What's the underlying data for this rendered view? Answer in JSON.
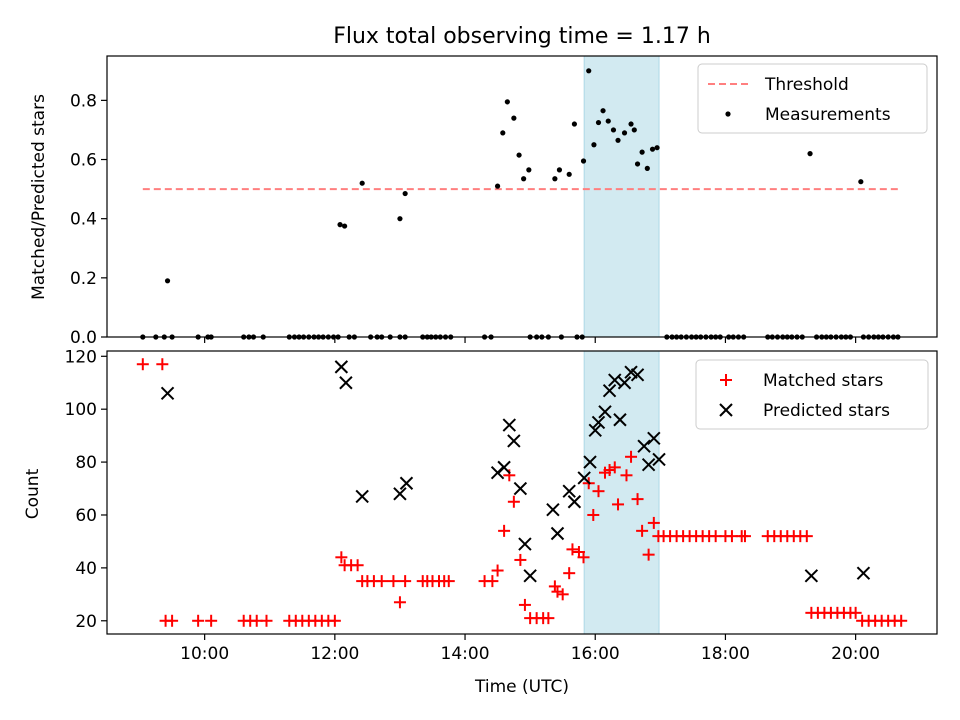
{
  "chart_data": [
    {
      "type": "scatter",
      "title": "Flux total observing time = 1.17 h",
      "xlabel": "",
      "ylabel": "Matched/Predicted stars",
      "ylim": [
        0,
        0.95
      ],
      "yticks": [
        "0.0",
        "0.2",
        "0.4",
        "0.6",
        "0.8"
      ],
      "xticks": [
        "",
        "",
        "",
        "",
        "",
        ""
      ],
      "highlight_span": [
        15.83,
        16.98
      ],
      "highlight_color": "#add8e6",
      "legend_position": "top-right",
      "threshold": {
        "name": "Threshold",
        "value": 0.5,
        "x_range": [
          9.05,
          20.7
        ],
        "color": "#ff7f7f"
      },
      "series": [
        {
          "name": "Measurements",
          "color": "#000000",
          "points": [
            [
              9.05,
              0
            ],
            [
              9.25,
              0
            ],
            [
              9.38,
              0
            ],
            [
              9.5,
              0
            ],
            [
              9.43,
              0.19
            ],
            [
              9.9,
              0
            ],
            [
              10.05,
              0
            ],
            [
              10.1,
              0
            ],
            [
              10.6,
              0
            ],
            [
              10.68,
              0
            ],
            [
              10.75,
              0
            ],
            [
              10.9,
              0
            ],
            [
              11.3,
              0
            ],
            [
              11.38,
              0
            ],
            [
              11.45,
              0
            ],
            [
              11.52,
              0
            ],
            [
              11.6,
              0
            ],
            [
              11.68,
              0
            ],
            [
              11.75,
              0
            ],
            [
              11.82,
              0
            ],
            [
              11.9,
              0
            ],
            [
              11.98,
              0
            ],
            [
              12.05,
              0
            ],
            [
              12.08,
              0.38
            ],
            [
              12.15,
              0.375
            ],
            [
              12.22,
              0
            ],
            [
              12.3,
              0
            ],
            [
              12.42,
              0.52
            ],
            [
              12.55,
              0
            ],
            [
              12.65,
              0
            ],
            [
              12.72,
              0
            ],
            [
              12.85,
              0
            ],
            [
              13.0,
              0.4
            ],
            [
              13.08,
              0.485
            ],
            [
              13.0,
              0
            ],
            [
              13.08,
              0
            ],
            [
              13.35,
              0
            ],
            [
              13.42,
              0
            ],
            [
              13.48,
              0
            ],
            [
              13.55,
              0
            ],
            [
              13.62,
              0
            ],
            [
              13.7,
              0
            ],
            [
              13.78,
              0
            ],
            [
              14.3,
              0
            ],
            [
              14.4,
              0
            ],
            [
              14.5,
              0.51
            ],
            [
              14.58,
              0.69
            ],
            [
              14.65,
              0.795
            ],
            [
              14.75,
              0.74
            ],
            [
              14.83,
              0.615
            ],
            [
              14.9,
              0.535
            ],
            [
              14.98,
              0.565
            ],
            [
              15.0,
              0
            ],
            [
              15.1,
              0
            ],
            [
              15.18,
              0
            ],
            [
              15.28,
              0
            ],
            [
              15.38,
              0.535
            ],
            [
              15.45,
              0.565
            ],
            [
              15.48,
              0
            ],
            [
              15.6,
              0.55
            ],
            [
              15.68,
              0.72
            ],
            [
              15.72,
              0
            ],
            [
              15.8,
              0
            ],
            [
              15.82,
              0.595
            ],
            [
              15.9,
              0.9
            ],
            [
              15.98,
              0.65
            ],
            [
              16.05,
              0.725
            ],
            [
              16.12,
              0.765
            ],
            [
              16.2,
              0.73
            ],
            [
              16.28,
              0.7
            ],
            [
              16.35,
              0.665
            ],
            [
              16.45,
              0.69
            ],
            [
              16.55,
              0.72
            ],
            [
              16.6,
              0.7
            ],
            [
              16.65,
              0.585
            ],
            [
              16.72,
              0.625
            ],
            [
              16.8,
              0.57
            ],
            [
              16.88,
              0.635
            ],
            [
              16.95,
              0.64
            ],
            [
              17.1,
              0
            ],
            [
              17.18,
              0
            ],
            [
              17.25,
              0
            ],
            [
              17.32,
              0
            ],
            [
              17.4,
              0
            ],
            [
              17.48,
              0
            ],
            [
              17.55,
              0
            ],
            [
              17.62,
              0
            ],
            [
              17.7,
              0
            ],
            [
              17.78,
              0
            ],
            [
              17.85,
              0
            ],
            [
              17.92,
              0
            ],
            [
              18.05,
              0
            ],
            [
              18.12,
              0
            ],
            [
              18.2,
              0
            ],
            [
              18.28,
              0
            ],
            [
              18.65,
              0
            ],
            [
              18.72,
              0
            ],
            [
              18.8,
              0
            ],
            [
              18.88,
              0
            ],
            [
              18.95,
              0
            ],
            [
              19.02,
              0
            ],
            [
              19.1,
              0
            ],
            [
              19.18,
              0
            ],
            [
              19.3,
              0.62
            ],
            [
              19.4,
              0
            ],
            [
              19.48,
              0
            ],
            [
              19.55,
              0
            ],
            [
              19.62,
              0
            ],
            [
              19.7,
              0
            ],
            [
              19.78,
              0
            ],
            [
              19.85,
              0
            ],
            [
              19.92,
              0
            ],
            [
              20.08,
              0.525
            ],
            [
              20.12,
              0
            ],
            [
              20.2,
              0
            ],
            [
              20.28,
              0
            ],
            [
              20.35,
              0
            ],
            [
              20.42,
              0
            ],
            [
              20.5,
              0
            ],
            [
              20.58,
              0
            ],
            [
              20.65,
              0
            ]
          ]
        }
      ]
    },
    {
      "type": "scatter",
      "title": "",
      "xlabel": "Time (UTC)",
      "ylabel": "Count",
      "ylim": [
        15,
        122
      ],
      "yticks": [
        "20",
        "40",
        "60",
        "80",
        "100",
        "120"
      ],
      "xticks": [
        "10:00",
        "12:00",
        "14:00",
        "16:00",
        "18:00",
        "20:00"
      ],
      "highlight_span": [
        15.83,
        16.98
      ],
      "highlight_color": "#add8e6",
      "legend_position": "top-right",
      "series": [
        {
          "name": "Matched stars",
          "color": "#ff0000",
          "marker": "plus",
          "points": [
            [
              9.05,
              117
            ],
            [
              9.35,
              117
            ],
            [
              9.4,
              20
            ],
            [
              9.5,
              20
            ],
            [
              9.9,
              20
            ],
            [
              10.1,
              20
            ],
            [
              10.6,
              20
            ],
            [
              10.7,
              20
            ],
            [
              10.8,
              20
            ],
            [
              10.95,
              20
            ],
            [
              11.3,
              20
            ],
            [
              11.4,
              20
            ],
            [
              11.5,
              20
            ],
            [
              11.6,
              20
            ],
            [
              11.7,
              20
            ],
            [
              11.8,
              20
            ],
            [
              11.9,
              20
            ],
            [
              12.0,
              20
            ],
            [
              12.1,
              44
            ],
            [
              12.15,
              41
            ],
            [
              12.25,
              41
            ],
            [
              12.35,
              41
            ],
            [
              12.42,
              35
            ],
            [
              12.5,
              35
            ],
            [
              12.6,
              35
            ],
            [
              12.72,
              35
            ],
            [
              12.9,
              35
            ],
            [
              13.0,
              27
            ],
            [
              13.08,
              35
            ],
            [
              13.35,
              35
            ],
            [
              13.42,
              35
            ],
            [
              13.5,
              35
            ],
            [
              13.6,
              35
            ],
            [
              13.68,
              35
            ],
            [
              13.75,
              35
            ],
            [
              14.3,
              35
            ],
            [
              14.42,
              35
            ],
            [
              14.5,
              39
            ],
            [
              14.6,
              54
            ],
            [
              14.68,
              75
            ],
            [
              14.75,
              65
            ],
            [
              14.85,
              43
            ],
            [
              14.92,
              26
            ],
            [
              15.0,
              21
            ],
            [
              15.1,
              21
            ],
            [
              15.2,
              21
            ],
            [
              15.28,
              21
            ],
            [
              15.38,
              33
            ],
            [
              15.42,
              31
            ],
            [
              15.5,
              30
            ],
            [
              15.6,
              38
            ],
            [
              15.65,
              47
            ],
            [
              15.75,
              46
            ],
            [
              15.82,
              44
            ],
            [
              15.9,
              72
            ],
            [
              15.97,
              60
            ],
            [
              16.05,
              69
            ],
            [
              16.15,
              76
            ],
            [
              16.22,
              77
            ],
            [
              16.3,
              78
            ],
            [
              16.35,
              64
            ],
            [
              16.48,
              75
            ],
            [
              16.55,
              82
            ],
            [
              16.65,
              66
            ],
            [
              16.72,
              54
            ],
            [
              16.82,
              45
            ],
            [
              16.9,
              57
            ],
            [
              16.97,
              52
            ],
            [
              17.05,
              52
            ],
            [
              17.15,
              52
            ],
            [
              17.25,
              52
            ],
            [
              17.35,
              52
            ],
            [
              17.45,
              52
            ],
            [
              17.55,
              52
            ],
            [
              17.65,
              52
            ],
            [
              17.75,
              52
            ],
            [
              17.85,
              52
            ],
            [
              18.0,
              52
            ],
            [
              18.1,
              52
            ],
            [
              18.25,
              52
            ],
            [
              18.3,
              52
            ],
            [
              18.65,
              52
            ],
            [
              18.75,
              52
            ],
            [
              18.85,
              52
            ],
            [
              18.95,
              52
            ],
            [
              19.05,
              52
            ],
            [
              19.15,
              52
            ],
            [
              19.25,
              52
            ],
            [
              19.32,
              23
            ],
            [
              19.42,
              23
            ],
            [
              19.52,
              23
            ],
            [
              19.62,
              23
            ],
            [
              19.72,
              23
            ],
            [
              19.82,
              23
            ],
            [
              19.92,
              23
            ],
            [
              20.0,
              23
            ],
            [
              20.1,
              20
            ],
            [
              20.2,
              20
            ],
            [
              20.3,
              20
            ],
            [
              20.4,
              20
            ],
            [
              20.5,
              20
            ],
            [
              20.6,
              20
            ],
            [
              20.7,
              20
            ]
          ]
        },
        {
          "name": "Predicted stars",
          "color": "#000000",
          "marker": "x",
          "points": [
            [
              9.43,
              106
            ],
            [
              12.1,
              116
            ],
            [
              12.17,
              110
            ],
            [
              12.42,
              67
            ],
            [
              13.0,
              68
            ],
            [
              13.1,
              72
            ],
            [
              14.5,
              76
            ],
            [
              14.6,
              78
            ],
            [
              14.68,
              94
            ],
            [
              14.75,
              88
            ],
            [
              14.85,
              70
            ],
            [
              14.92,
              49
            ],
            [
              15.0,
              37
            ],
            [
              15.35,
              62
            ],
            [
              15.42,
              53
            ],
            [
              15.6,
              69
            ],
            [
              15.68,
              65
            ],
            [
              15.83,
              74
            ],
            [
              15.92,
              80
            ],
            [
              16.0,
              92
            ],
            [
              16.05,
              95
            ],
            [
              16.15,
              99
            ],
            [
              16.22,
              107
            ],
            [
              16.3,
              111
            ],
            [
              16.38,
              96
            ],
            [
              16.45,
              110
            ],
            [
              16.55,
              114
            ],
            [
              16.65,
              113
            ],
            [
              16.75,
              86
            ],
            [
              16.82,
              79
            ],
            [
              16.9,
              89
            ],
            [
              16.98,
              81
            ],
            [
              19.32,
              37
            ],
            [
              20.12,
              38
            ]
          ]
        }
      ]
    }
  ]
}
